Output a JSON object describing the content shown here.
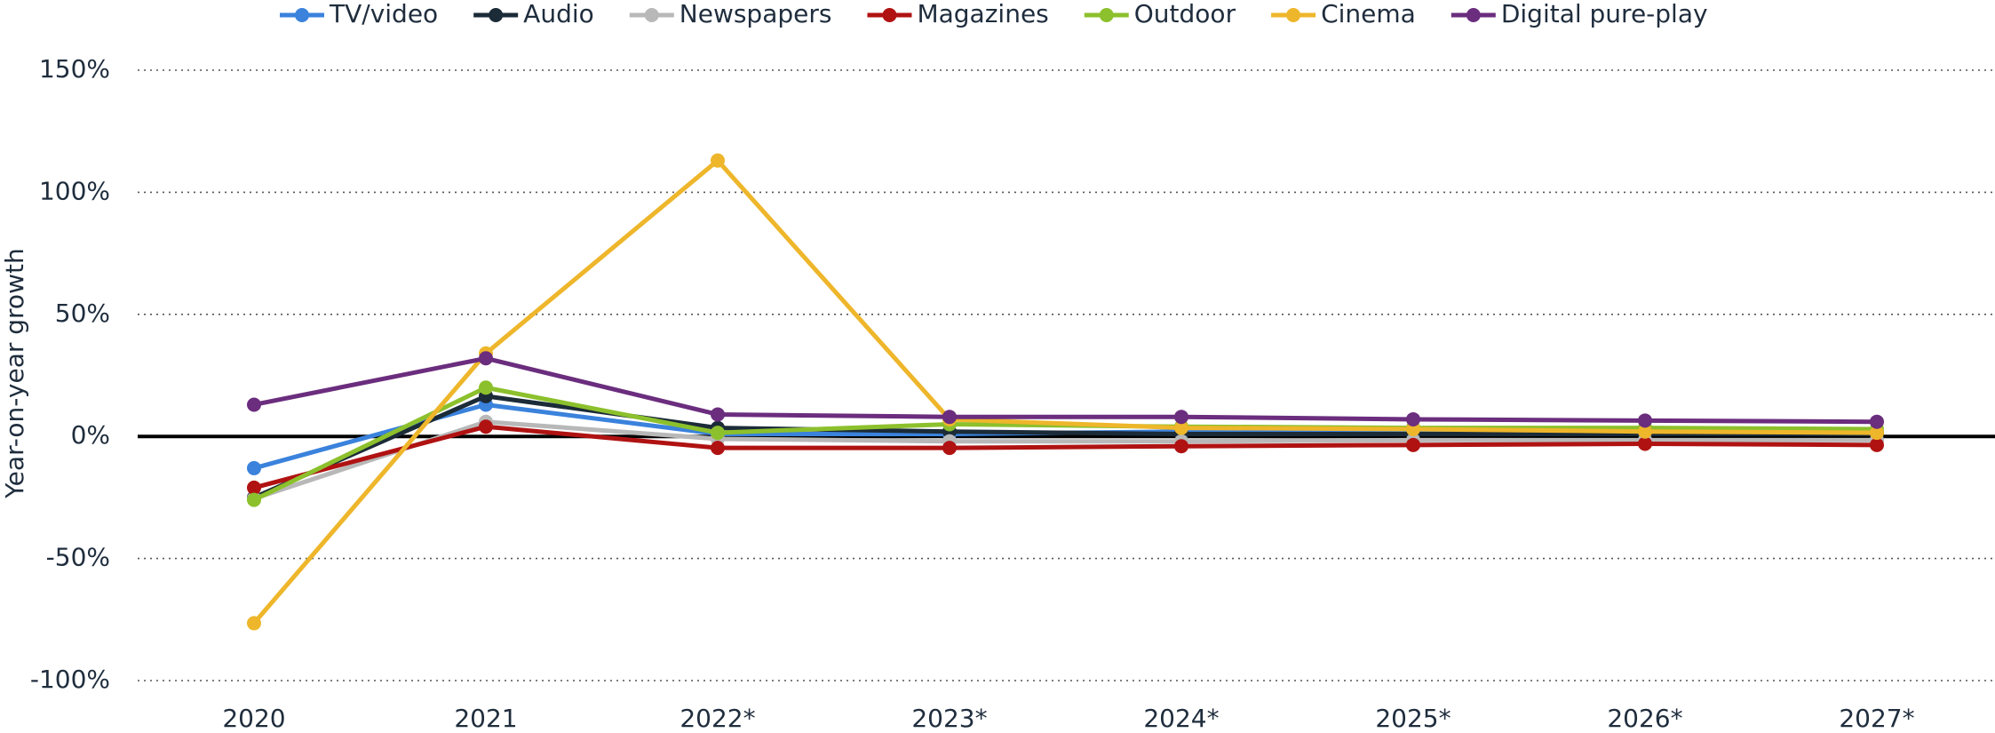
{
  "chart_data": {
    "type": "line",
    "y_label": "Year-on-year growth",
    "categories": [
      "2020",
      "2021",
      "2022*",
      "2023*",
      "2024*",
      "2025*",
      "2026*",
      "2027*"
    ],
    "series": [
      {
        "name": "TV/video",
        "color": "#3a82dc",
        "values": [
          -13,
          13,
          1,
          1,
          2,
          2,
          2,
          2
        ]
      },
      {
        "name": "Audio",
        "color": "#1b2b38",
        "values": [
          -25,
          16.5,
          3.5,
          2,
          1,
          1,
          1,
          1
        ]
      },
      {
        "name": "Newspapers",
        "color": "#b8b8b8",
        "values": [
          -25.5,
          6,
          -1,
          -2,
          -2,
          -1.5,
          -1.5,
          -1.5
        ]
      },
      {
        "name": "Magazines",
        "color": "#b01212",
        "values": [
          -21,
          4,
          -4.7,
          -4.7,
          -4,
          -3.5,
          -3,
          -3.5
        ]
      },
      {
        "name": "Outdoor",
        "color": "#8cc02c",
        "values": [
          -26,
          20,
          1.5,
          5,
          4,
          3.5,
          3.5,
          3
        ]
      },
      {
        "name": "Cinema",
        "color": "#eeb62b",
        "values": [
          -76.5,
          34,
          113,
          7,
          3.5,
          3,
          2,
          1.5
        ]
      },
      {
        "name": "Digital pure-play",
        "color": "#6b2d7e",
        "values": [
          13,
          32,
          9,
          8,
          8,
          7,
          6.5,
          6
        ]
      }
    ],
    "ylim": [
      -100,
      150
    ],
    "yticks": [
      {
        "value": -100,
        "label": "-100%"
      },
      {
        "value": -50,
        "label": "-50%"
      },
      {
        "value": 0,
        "label": "0%"
      },
      {
        "value": 50,
        "label": "50%"
      },
      {
        "value": 100,
        "label": "100%"
      },
      {
        "value": 150,
        "label": "150%"
      }
    ],
    "grid": true,
    "legend": "top"
  }
}
